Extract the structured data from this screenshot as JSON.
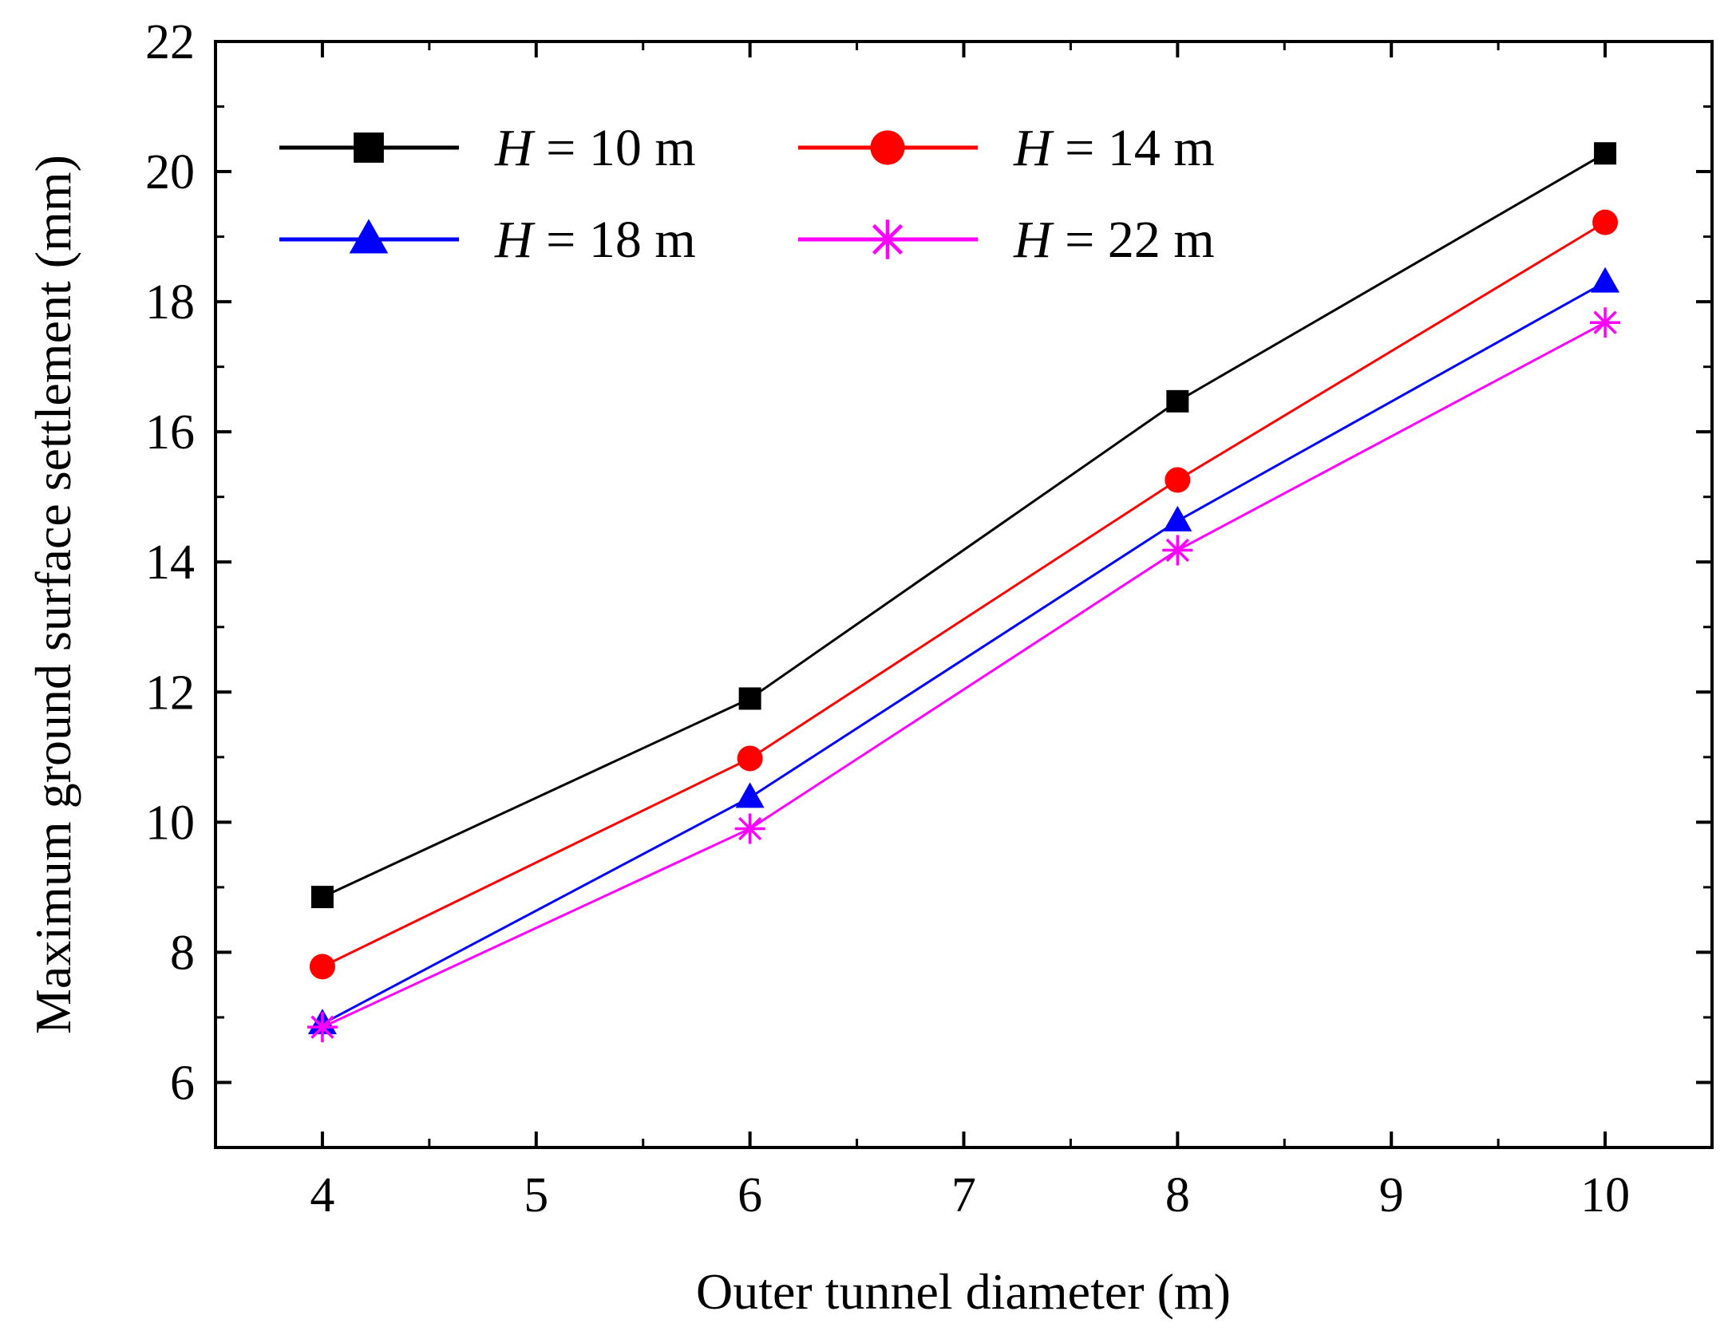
{
  "chart_data": {
    "type": "line",
    "title": "",
    "xlabel": "Outer tunnel diameter (m)",
    "ylabel": "Maximum ground surface settlement (mm)",
    "xlim": [
      3.5,
      10.5
    ],
    "ylim": [
      5,
      22
    ],
    "xticks": [
      4,
      5,
      6,
      7,
      8,
      9,
      10
    ],
    "yticks": [
      6,
      8,
      10,
      12,
      14,
      16,
      18,
      20,
      22
    ],
    "xtick_labels": [
      "4",
      "5",
      "6",
      "7",
      "8",
      "9",
      "10"
    ],
    "ytick_labels": [
      "6",
      "8",
      "10",
      "12",
      "14",
      "16",
      "18",
      "20",
      "22"
    ],
    "grid": false,
    "legend_position": "top-left",
    "x": [
      4,
      6,
      8,
      10
    ],
    "series": [
      {
        "name": "H = 10 m",
        "var": "H",
        "rest": " = 10 m",
        "color": "#000000",
        "marker": "square",
        "values": [
          8.85,
          11.9,
          16.47,
          20.28
        ]
      },
      {
        "name": "H = 14 m",
        "var": "H",
        "rest": " = 14 m",
        "color": "#ff0000",
        "marker": "circle",
        "values": [
          7.78,
          10.98,
          15.26,
          19.22
        ]
      },
      {
        "name": "H = 18 m",
        "var": "H",
        "rest": " = 18 m",
        "color": "#0000ff",
        "marker": "triangle",
        "values": [
          6.9,
          10.38,
          14.63,
          18.3
        ]
      },
      {
        "name": "H = 22 m",
        "var": "H",
        "rest": " = 22 m",
        "color": "#ff00ff",
        "marker": "star",
        "values": [
          6.85,
          9.9,
          14.18,
          17.68
        ]
      }
    ]
  }
}
